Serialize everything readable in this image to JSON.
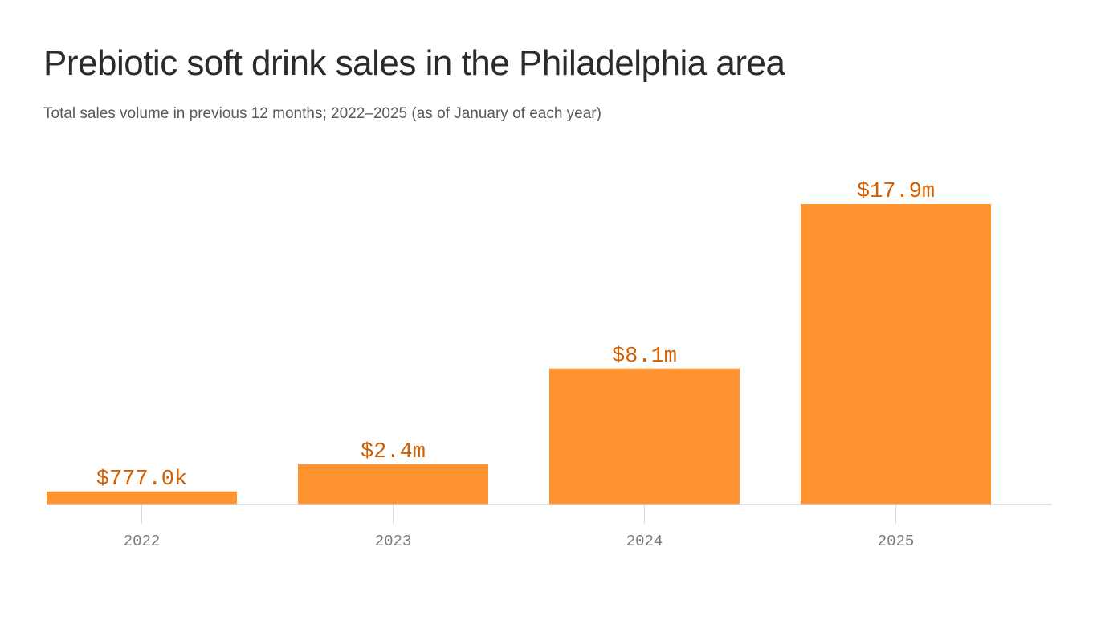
{
  "chart_data": {
    "type": "bar",
    "title": "Prebiotic soft drink sales in the Philadelphia area",
    "subtitle": "Total sales volume in previous 12 months; 2022–2025 (as of January of each year)",
    "categories": [
      "2022",
      "2023",
      "2024",
      "2025"
    ],
    "values": [
      0.777,
      2.4,
      8.1,
      17.9
    ],
    "value_labels": [
      "$777.0k",
      "$2.4m",
      "$8.1m",
      "$17.9m"
    ],
    "unit": "million dollars",
    "ylim": [
      0,
      17.9
    ],
    "grid": false,
    "legend": "none"
  },
  "colors": {
    "bar": "#ff9330",
    "value_label": "#d45f00",
    "baseline": "#d9d9d9",
    "tick": "#d9d9d9"
  }
}
